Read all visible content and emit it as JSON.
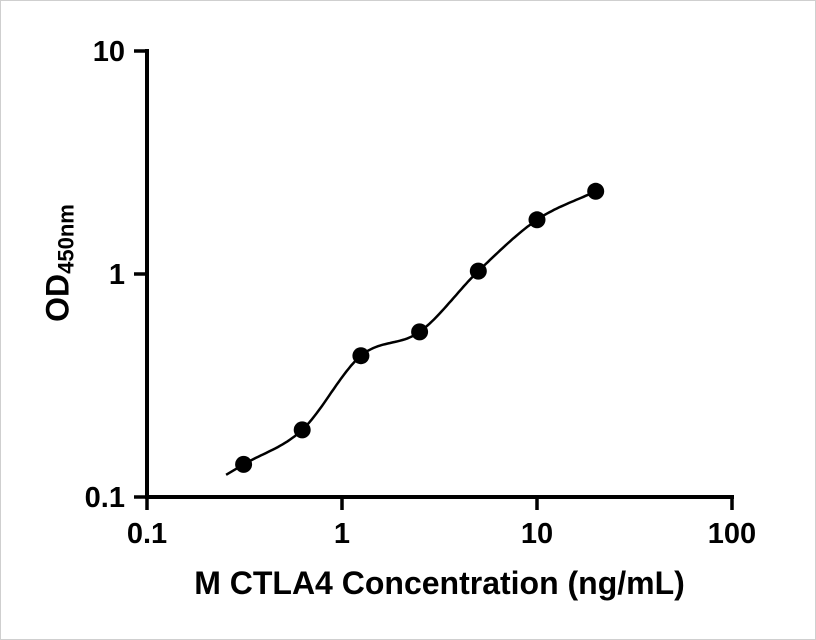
{
  "chart_data": {
    "type": "scatter",
    "x": [
      0.313,
      0.625,
      1.25,
      2.5,
      5,
      10,
      20
    ],
    "y": [
      0.14,
      0.2,
      0.43,
      0.55,
      1.03,
      1.75,
      2.35
    ],
    "xlabel": "M CTLA4 Concentration (ng/mL)",
    "ylabel_main": "OD",
    "ylabel_sub": "450nm",
    "x_scale": "log",
    "y_scale": "log",
    "xlim": [
      0.1,
      100
    ],
    "ylim": [
      0.1,
      10
    ],
    "x_ticks": [
      0.1,
      1,
      10,
      100
    ],
    "x_tick_labels": [
      "0.1",
      "1",
      "10",
      "100"
    ],
    "y_ticks": [
      0.1,
      1,
      10
    ],
    "y_tick_labels": [
      "0.1",
      "1",
      "10"
    ],
    "grid": false,
    "legend": "none",
    "curve_fit": "smooth sigmoid curve through points",
    "marker_color": "#000000",
    "line_color": "#000000",
    "axis_color": "#000000",
    "background_color": "#ffffff"
  }
}
